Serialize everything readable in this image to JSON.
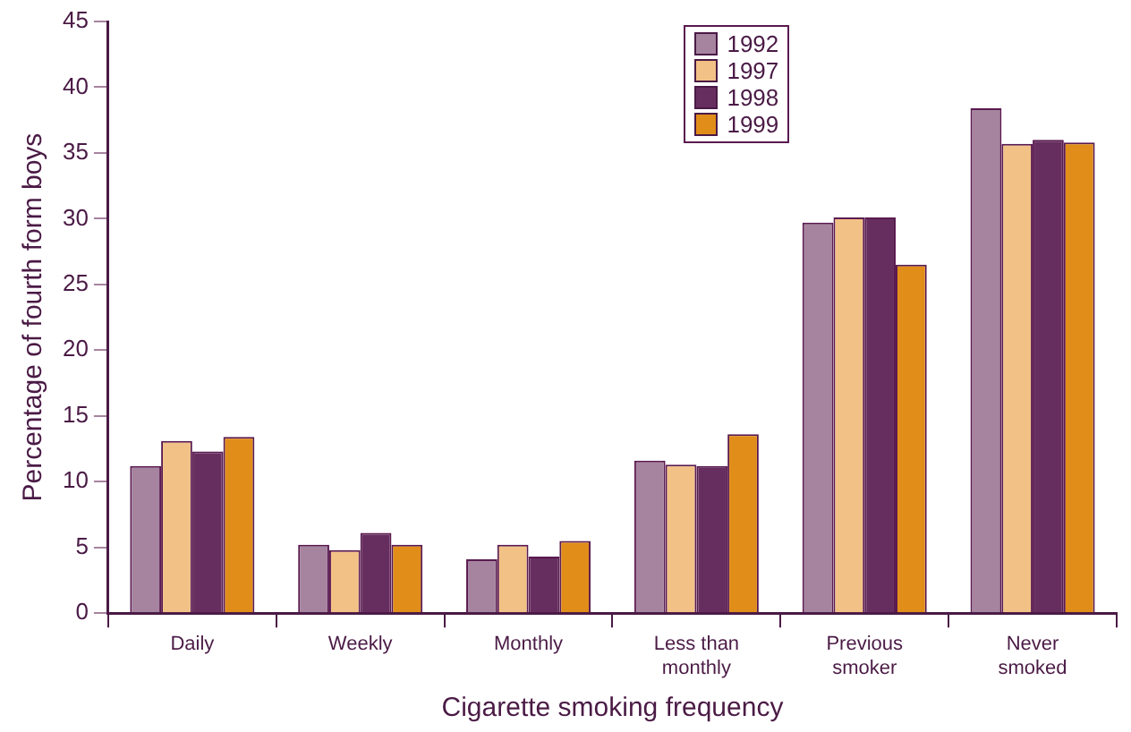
{
  "chart_data": {
    "type": "bar",
    "xlabel": "Cigarette smoking frequency",
    "ylabel": "Percentage of fourth form boys",
    "categories": [
      "Daily",
      "Weekly",
      "Monthly",
      "Less than\nmonthly",
      "Previous\nsmoker",
      "Never\nsmoked"
    ],
    "series": [
      {
        "name": "1992",
        "color": "#a6849f",
        "values": [
          11.2,
          5.2,
          4.1,
          11.6,
          29.7,
          38.4
        ]
      },
      {
        "name": "1997",
        "color": "#f2c186",
        "values": [
          13.1,
          4.8,
          5.2,
          11.3,
          30.1,
          35.7
        ]
      },
      {
        "name": "1998",
        "color": "#662e5e",
        "values": [
          12.3,
          6.1,
          4.3,
          11.2,
          30.1,
          36.0
        ]
      },
      {
        "name": "1999",
        "color": "#e18d1a",
        "values": [
          13.4,
          5.2,
          5.5,
          13.6,
          26.5,
          35.8
        ]
      }
    ],
    "ylim": [
      0,
      45
    ],
    "yticks": [
      0,
      5,
      10,
      15,
      20,
      25,
      30,
      35,
      40,
      45
    ],
    "grid": false,
    "legend": "top"
  }
}
